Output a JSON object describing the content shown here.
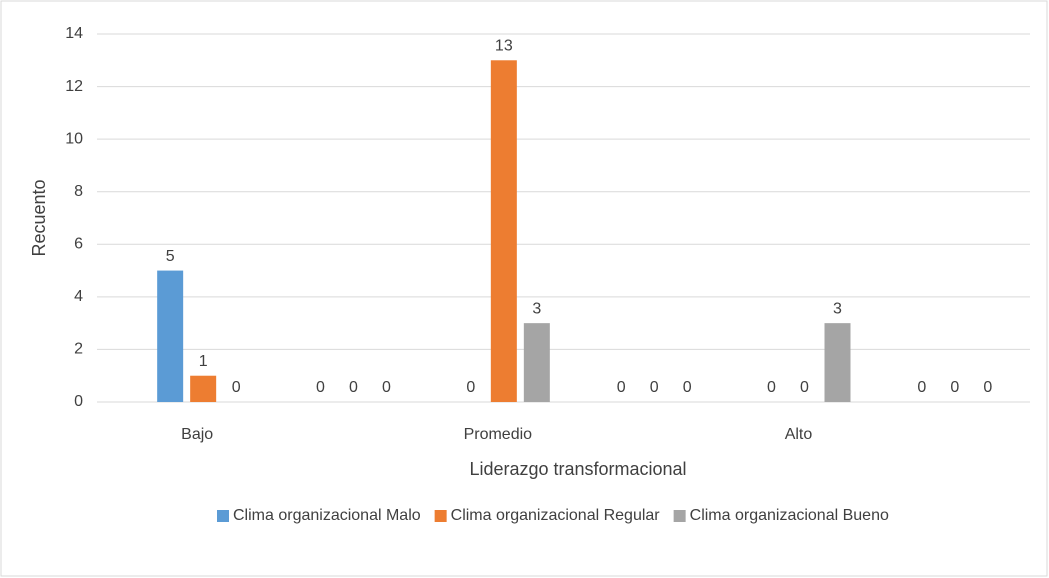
{
  "chart_data": {
    "type": "bar",
    "categories": [
      "Bajo",
      null,
      "Promedio",
      null,
      "Alto",
      null
    ],
    "series": [
      {
        "name": "Clima organizacional Malo",
        "color": "#5b9bd5",
        "values": [
          5,
          0,
          0,
          0,
          0,
          0
        ]
      },
      {
        "name": "Clima organizacional Regular",
        "color": "#ed7d31",
        "values": [
          1,
          0,
          13,
          0,
          0,
          0
        ]
      },
      {
        "name": "Clima organizacional Bueno",
        "color": "#a5a5a5",
        "values": [
          0,
          0,
          3,
          0,
          3,
          0
        ]
      }
    ],
    "ylim": [
      0,
      14
    ],
    "yticks": [
      0,
      2,
      4,
      6,
      8,
      10,
      12,
      14
    ],
    "grid": true,
    "xlabel": "Liderazgo transformacional",
    "ylabel": "Recuento",
    "legend": "bottom"
  }
}
